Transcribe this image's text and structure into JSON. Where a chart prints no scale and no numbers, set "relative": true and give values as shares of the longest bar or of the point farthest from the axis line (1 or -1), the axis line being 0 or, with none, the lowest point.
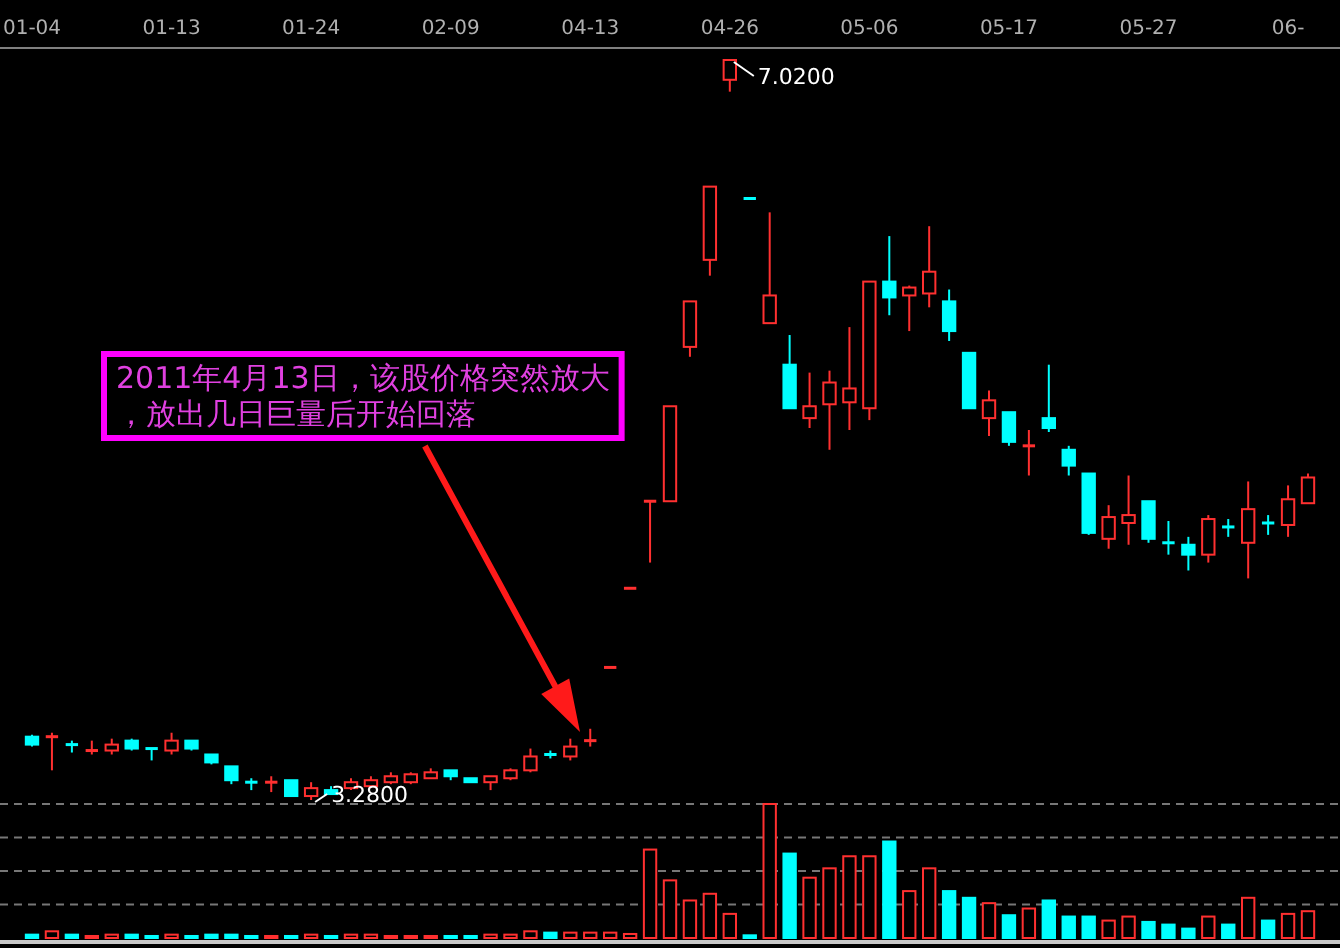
{
  "chart_data": [
    {
      "type": "candlestick",
      "categories": [
        "01-04",
        null,
        null,
        null,
        null,
        null,
        null,
        "01-13",
        null,
        null,
        null,
        null,
        null,
        null,
        "01-24",
        null,
        null,
        null,
        null,
        null,
        null,
        "02-09",
        null,
        null,
        null,
        null,
        null,
        null,
        "04-13",
        null,
        null,
        null,
        null,
        null,
        null,
        "04-26",
        null,
        null,
        null,
        null,
        null,
        null,
        "05-06",
        null,
        null,
        null,
        null,
        null,
        null,
        "05-17",
        null,
        null,
        null,
        null,
        null,
        null,
        "05-27",
        null,
        null,
        null,
        null,
        null,
        null,
        "06-",
        null
      ],
      "ohlc": [
        [
          3.6,
          3.61,
          3.55,
          3.56
        ],
        [
          3.6,
          3.62,
          3.43,
          3.6
        ],
        [
          3.56,
          3.58,
          3.52,
          3.56
        ],
        [
          3.53,
          3.58,
          3.51,
          3.53
        ],
        [
          3.53,
          3.59,
          3.51,
          3.56
        ],
        [
          3.58,
          3.59,
          3.53,
          3.54
        ],
        [
          3.54,
          3.54,
          3.48,
          3.53
        ],
        [
          3.53,
          3.62,
          3.51,
          3.58
        ],
        [
          3.58,
          3.58,
          3.53,
          3.54
        ],
        [
          3.51,
          3.51,
          3.46,
          3.47
        ],
        [
          3.45,
          3.45,
          3.36,
          3.38
        ],
        [
          3.37,
          3.39,
          3.33,
          3.37
        ],
        [
          3.37,
          3.4,
          3.32,
          3.37
        ],
        [
          3.38,
          3.38,
          3.3,
          3.3
        ],
        [
          3.3,
          3.37,
          3.28,
          3.34
        ],
        [
          3.33,
          3.35,
          3.31,
          3.31
        ],
        [
          3.34,
          3.39,
          3.33,
          3.37
        ],
        [
          3.35,
          3.4,
          3.34,
          3.38
        ],
        [
          3.37,
          3.42,
          3.36,
          3.4
        ],
        [
          3.37,
          3.42,
          3.36,
          3.41
        ],
        [
          3.39,
          3.44,
          3.39,
          3.42
        ],
        [
          3.43,
          3.43,
          3.38,
          3.4
        ],
        [
          3.39,
          3.39,
          3.37,
          3.37
        ],
        [
          3.37,
          3.4,
          3.33,
          3.4
        ],
        [
          3.39,
          3.44,
          3.38,
          3.43
        ],
        [
          3.43,
          3.54,
          3.42,
          3.5
        ],
        [
          3.51,
          3.53,
          3.49,
          3.51
        ],
        [
          3.5,
          3.59,
          3.48,
          3.55
        ],
        [
          3.58,
          3.64,
          3.55,
          3.58
        ],
        [
          3.95,
          3.95,
          3.95,
          3.95
        ],
        [
          4.35,
          4.35,
          4.35,
          4.35
        ],
        [
          4.79,
          4.79,
          4.48,
          4.79
        ],
        [
          4.79,
          5.27,
          4.79,
          5.27
        ],
        [
          5.57,
          5.8,
          5.52,
          5.8
        ],
        [
          6.01,
          6.38,
          5.93,
          6.38
        ],
        [
          6.92,
          7.02,
          6.86,
          7.02
        ],
        [
          6.32,
          6.32,
          6.32,
          6.32
        ],
        [
          5.69,
          6.25,
          5.69,
          5.83
        ],
        [
          5.48,
          5.63,
          5.26,
          5.26
        ],
        [
          5.21,
          5.44,
          5.16,
          5.27
        ],
        [
          5.28,
          5.45,
          5.05,
          5.39
        ],
        [
          5.29,
          5.67,
          5.15,
          5.36
        ],
        [
          5.26,
          5.9,
          5.2,
          5.9
        ],
        [
          5.9,
          6.13,
          5.73,
          5.82
        ],
        [
          5.83,
          5.88,
          5.65,
          5.87
        ],
        [
          5.84,
          6.18,
          5.77,
          5.95
        ],
        [
          5.8,
          5.86,
          5.6,
          5.65
        ],
        [
          5.54,
          5.54,
          5.26,
          5.26
        ],
        [
          5.21,
          5.35,
          5.12,
          5.3
        ],
        [
          5.24,
          5.24,
          5.07,
          5.09
        ],
        [
          5.07,
          5.15,
          4.92,
          5.07
        ],
        [
          5.21,
          5.48,
          5.14,
          5.16
        ],
        [
          5.05,
          5.07,
          4.92,
          4.97
        ],
        [
          4.93,
          4.93,
          4.62,
          4.63
        ],
        [
          4.6,
          4.77,
          4.55,
          4.71
        ],
        [
          4.68,
          4.92,
          4.57,
          4.72
        ],
        [
          4.79,
          4.79,
          4.58,
          4.6
        ],
        [
          4.58,
          4.69,
          4.52,
          4.58
        ],
        [
          4.57,
          4.61,
          4.44,
          4.52
        ],
        [
          4.52,
          4.72,
          4.48,
          4.7
        ],
        [
          4.66,
          4.7,
          4.61,
          4.66
        ],
        [
          4.58,
          4.89,
          4.4,
          4.75
        ],
        [
          4.68,
          4.72,
          4.62,
          4.68
        ],
        [
          4.67,
          4.87,
          4.61,
          4.8
        ],
        [
          4.78,
          4.93,
          4.78,
          4.91
        ]
      ],
      "colors": [
        "#00ffff",
        "#ff3030",
        "#00ffff",
        "#ff3030",
        "#ff3030",
        "#00ffff",
        "#00ffff",
        "#ff3030",
        "#00ffff",
        "#00ffff",
        "#00ffff",
        "#00ffff",
        "#ff3030",
        "#00ffff",
        "#ff3030",
        "#00ffff",
        "#ff3030",
        "#ff3030",
        "#ff3030",
        "#ff3030",
        "#ff3030",
        "#00ffff",
        "#00ffff",
        "#ff3030",
        "#ff3030",
        "#ff3030",
        "#00ffff",
        "#ff3030",
        "#ff3030",
        "#ff3030",
        "#ff3030",
        "#ff3030",
        "#ff3030",
        "#ff3030",
        "#ff3030",
        "#ff3030",
        "#00ffff",
        "#ff3030",
        "#00ffff",
        "#ff3030",
        "#ff3030",
        "#ff3030",
        "#ff3030",
        "#00ffff",
        "#ff3030",
        "#ff3030",
        "#00ffff",
        "#00ffff",
        "#ff3030",
        "#00ffff",
        "#ff3030",
        "#00ffff",
        "#00ffff",
        "#00ffff",
        "#ff3030",
        "#ff3030",
        "#00ffff",
        "#00ffff",
        "#00ffff",
        "#ff3030",
        "#00ffff",
        "#ff3030",
        "#00ffff",
        "#ff3030",
        "#ff3030"
      ],
      "annotations": [
        {
          "text": "7.0200",
          "x": "04-26",
          "y": 7.02
        },
        {
          "text": "3.2800",
          "x": "01-24",
          "y": 3.28
        },
        "2011年4月13日，该股价格突然放大，放出几日巨量后开始回落"
      ]
    },
    {
      "type": "bar",
      "relative": true,
      "grid": true,
      "categories": [
        null,
        null,
        null,
        null,
        null,
        null,
        null,
        null,
        null,
        null,
        null,
        null,
        null,
        null,
        null,
        null,
        null,
        null,
        null,
        null,
        null,
        null,
        null,
        null,
        null,
        null,
        null,
        null,
        null,
        null,
        null,
        null,
        null,
        null,
        null,
        null,
        null,
        null,
        null,
        null,
        null,
        null,
        null,
        null,
        null,
        null,
        null,
        null,
        null,
        null,
        null,
        null,
        null,
        null,
        null,
        null,
        null,
        null,
        null,
        null,
        null,
        null,
        null,
        null,
        null
      ],
      "values": [
        0.025,
        0.05,
        0.025,
        0.015,
        0.025,
        0.025,
        0.015,
        0.025,
        0.015,
        0.025,
        0.025,
        0.015,
        0.015,
        0.015,
        0.025,
        0.015,
        0.025,
        0.025,
        0.015,
        0.015,
        0.015,
        0.015,
        0.015,
        0.025,
        0.025,
        0.05,
        0.04,
        0.04,
        0.04,
        0.04,
        0.03,
        0.66,
        0.43,
        0.28,
        0.33,
        0.18,
        0.02,
        1,
        0.63,
        0.45,
        0.52,
        0.61,
        0.61,
        0.72,
        0.35,
        0.52,
        0.35,
        0.3,
        0.26,
        0.17,
        0.22,
        0.28,
        0.16,
        0.16,
        0.13,
        0.16,
        0.12,
        0.1,
        0.07,
        0.16,
        0.1,
        0.3,
        0.13,
        0.18,
        0.2
      ],
      "colors": [
        "#00ffff",
        "#ff3030",
        "#00ffff",
        "#ff3030",
        "#ff3030",
        "#00ffff",
        "#00ffff",
        "#ff3030",
        "#00ffff",
        "#00ffff",
        "#00ffff",
        "#00ffff",
        "#ff3030",
        "#00ffff",
        "#ff3030",
        "#00ffff",
        "#ff3030",
        "#ff3030",
        "#ff3030",
        "#ff3030",
        "#ff3030",
        "#00ffff",
        "#00ffff",
        "#ff3030",
        "#ff3030",
        "#ff3030",
        "#00ffff",
        "#ff3030",
        "#ff3030",
        "#ff3030",
        "#ff3030",
        "#ff3030",
        "#ff3030",
        "#ff3030",
        "#ff3030",
        "#ff3030",
        "#00ffff",
        "#ff3030",
        "#00ffff",
        "#ff3030",
        "#ff3030",
        "#ff3030",
        "#ff3030",
        "#00ffff",
        "#ff3030",
        "#ff3030",
        "#00ffff",
        "#00ffff",
        "#ff3030",
        "#00ffff",
        "#ff3030",
        "#00ffff",
        "#00ffff",
        "#00ffff",
        "#ff3030",
        "#ff3030",
        "#00ffff",
        "#00ffff",
        "#00ffff",
        "#ff3030",
        "#00ffff",
        "#ff3030",
        "#00ffff",
        "#ff3030",
        "#ff3030"
      ]
    }
  ]
}
